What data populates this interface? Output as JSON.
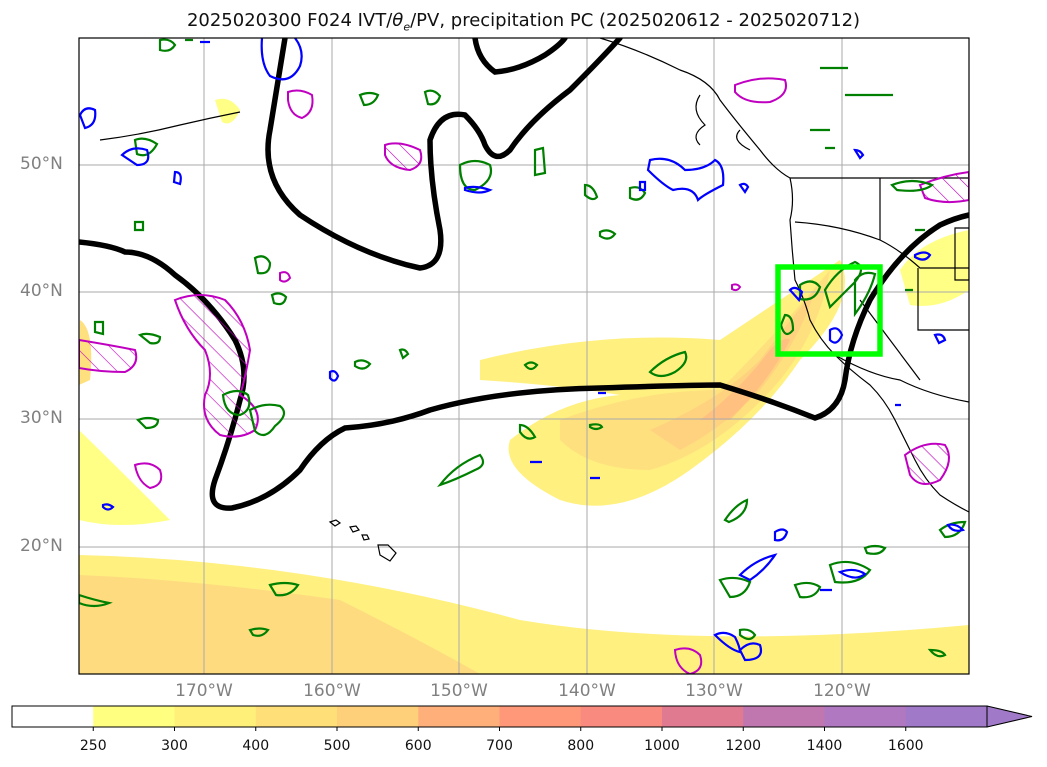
{
  "title_prefix": "2025020300 F024 IVT/",
  "title_theta": "θ",
  "title_sub": "e",
  "title_suffix": "/PV, precipitation PC (2025020612 - 2025020712)",
  "lat_labels": [
    "50°N",
    "40°N",
    "30°N",
    "20°N"
  ],
  "lon_labels": [
    "170°W",
    "160°W",
    "150°W",
    "140°W",
    "130°W",
    "120°W"
  ],
  "colorbar": {
    "ticks": [
      "250",
      "300",
      "400",
      "500",
      "600",
      "700",
      "800",
      "1000",
      "1200",
      "1400",
      "1600"
    ],
    "colors": [
      "#ffffff",
      "#ffff80",
      "#fff07a",
      "#ffdf78",
      "#ffd07a",
      "#ffb07a",
      "#ff9878",
      "#f88a80",
      "#e07a90",
      "#c077b0",
      "#b078c0",
      "#a07ac8"
    ]
  },
  "colors": {
    "ivt_contour": "#000000",
    "theta_e": "#008000",
    "pv": "#0000ff",
    "precip_pc": "#c000c0",
    "target_box": "#00ff00",
    "coast": "#000000",
    "grid": "#aaaaaa"
  }
}
